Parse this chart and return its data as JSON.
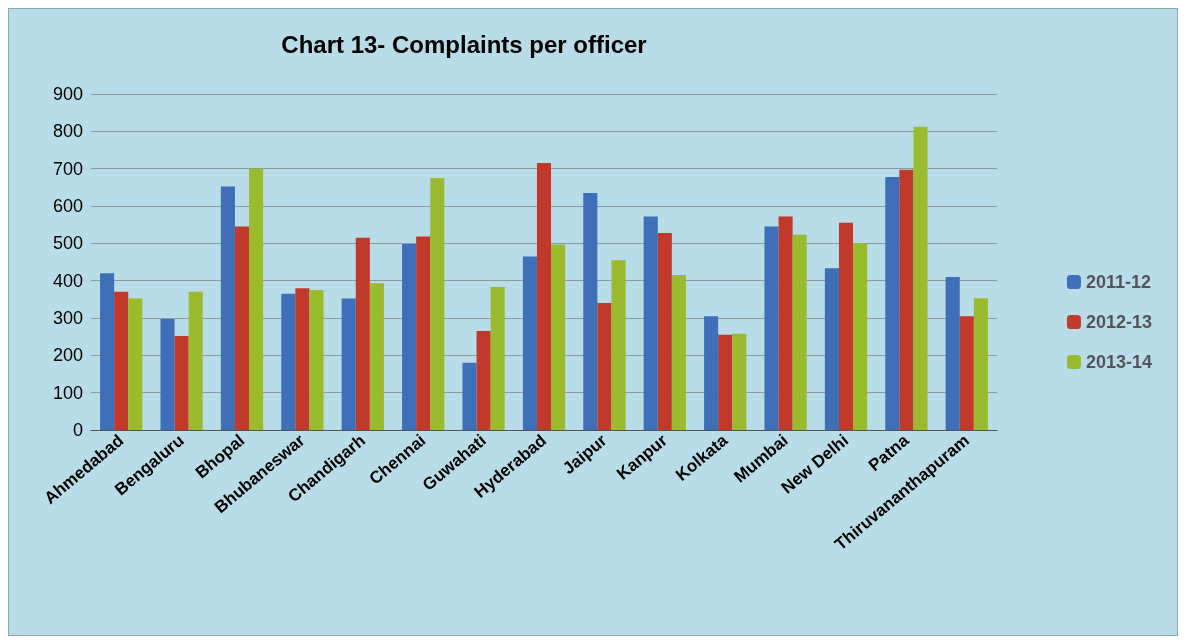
{
  "chart_data": {
    "type": "bar",
    "title": "Chart 13- Complaints per officer",
    "categories": [
      "Ahmedabad",
      "Bengaluru",
      "Bhopal",
      "Bhubaneswar",
      "Chandigarh",
      "Chennai",
      "Guwahati",
      "Hyderabad",
      "Jaipur",
      "Kanpur",
      "Kolkata",
      "Mumbai",
      "New Delhi",
      "Patna",
      "Thiruvananthapuram"
    ],
    "series": [
      {
        "name": "2011-12",
        "color": "#3f6fb8",
        "values": [
          420,
          297,
          652,
          365,
          352,
          498,
          180,
          465,
          635,
          572,
          305,
          545,
          433,
          678,
          410
        ]
      },
      {
        "name": "2012-13",
        "color": "#c0392b",
        "values": [
          370,
          252,
          545,
          380,
          515,
          518,
          265,
          715,
          340,
          528,
          255,
          572,
          555,
          697,
          305
        ]
      },
      {
        "name": "2013-14",
        "color": "#9bbb2f",
        "values": [
          352,
          370,
          700,
          375,
          393,
          675,
          383,
          497,
          455,
          415,
          258,
          523,
          500,
          812,
          353
        ]
      }
    ],
    "ylim": [
      0,
      900
    ],
    "yticks": [
      0,
      100,
      200,
      300,
      400,
      500,
      600,
      700,
      800,
      900
    ],
    "grid": "y",
    "legend": "right"
  }
}
